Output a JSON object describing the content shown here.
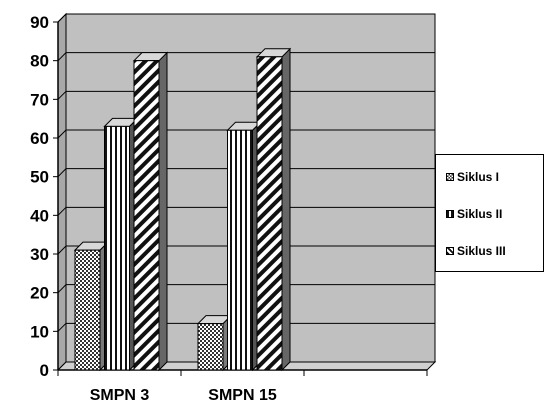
{
  "chart_data": {
    "type": "bar",
    "style": "3d-clustered-column",
    "categories": [
      "SMPN 3",
      "SMPN 15"
    ],
    "series": [
      {
        "name": "Siklus I",
        "values": [
          31,
          12
        ],
        "pattern": "checker"
      },
      {
        "name": "Siklus II",
        "values": [
          63,
          62
        ],
        "pattern": "vertical"
      },
      {
        "name": "Siklus III",
        "values": [
          80,
          81
        ],
        "pattern": "diagonal"
      }
    ],
    "ylim": [
      0,
      90
    ],
    "yticks": [
      "0",
      "10",
      "20",
      "30",
      "40",
      "50",
      "60",
      "70",
      "80",
      "90"
    ],
    "grid": true,
    "legend_position": "right",
    "colors": {
      "wall": "#c0c0c0",
      "side_wall": "#a8a8a8",
      "floor": "#d0d0d0",
      "bar_stroke": "#000000"
    }
  }
}
